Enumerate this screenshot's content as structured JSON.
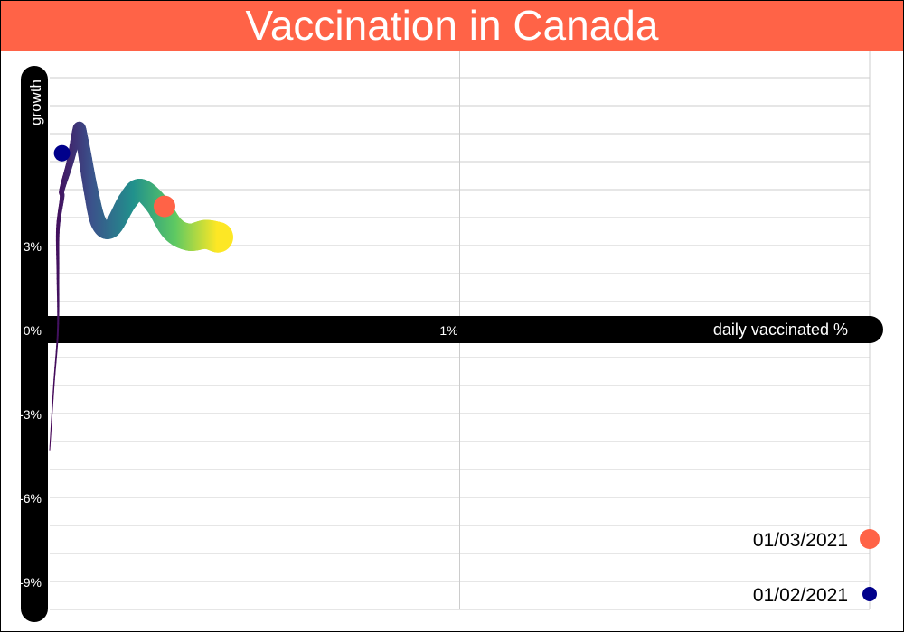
{
  "title": "Vaccination in Canada",
  "colors": {
    "title_bg": "#FF6347",
    "axis_bar": "#000000",
    "grid": "#cccccc",
    "marker_later": "#FF6347",
    "marker_earlier": "#00008B",
    "path_gradient": [
      "#440154",
      "#3b528b",
      "#21918c",
      "#5ec962",
      "#fde725"
    ]
  },
  "chart_data": {
    "type": "line",
    "xlabel": "daily vaccinated %",
    "ylabel": "growth",
    "x_ticks": [
      "1%"
    ],
    "y_ticks": [
      "3%",
      "0%",
      "-3%",
      "-6%",
      "-9%"
    ],
    "xlim": [
      0,
      2
    ],
    "ylim": [
      -10,
      10
    ],
    "grid": true,
    "legend_position": "bottom-right",
    "legend": [
      {
        "label": "01/03/2021",
        "color": "#FF6347"
      },
      {
        "label": "01/02/2021",
        "color": "#00008B"
      }
    ],
    "series": [
      {
        "x": [
          0.0,
          0.01,
          0.02,
          0.02,
          0.02,
          0.03,
          0.03,
          0.05,
          0.07,
          0.08,
          0.1,
          0.12,
          0.15,
          0.19,
          0.22,
          0.26,
          0.3,
          0.34,
          0.38,
          0.41
        ],
        "y": [
          -4.3,
          -2.0,
          0.0,
          2.0,
          3.6,
          4.7,
          5.0,
          6.0,
          7.2,
          6.7,
          5.0,
          3.8,
          3.6,
          4.6,
          5.0,
          4.5,
          3.6,
          3.3,
          3.4,
          3.3
        ],
        "width": [
          1,
          1.5,
          2,
          3,
          4,
          5,
          6,
          8,
          12,
          14,
          16,
          18,
          20,
          22,
          24,
          26,
          28,
          30,
          32,
          34
        ]
      }
    ],
    "markers": [
      {
        "label": "01/02/2021",
        "x": 0.03,
        "y": 6.3,
        "color": "#00008B"
      },
      {
        "label": "01/03/2021",
        "x": 0.28,
        "y": 4.4,
        "color": "#FF6347"
      }
    ]
  }
}
